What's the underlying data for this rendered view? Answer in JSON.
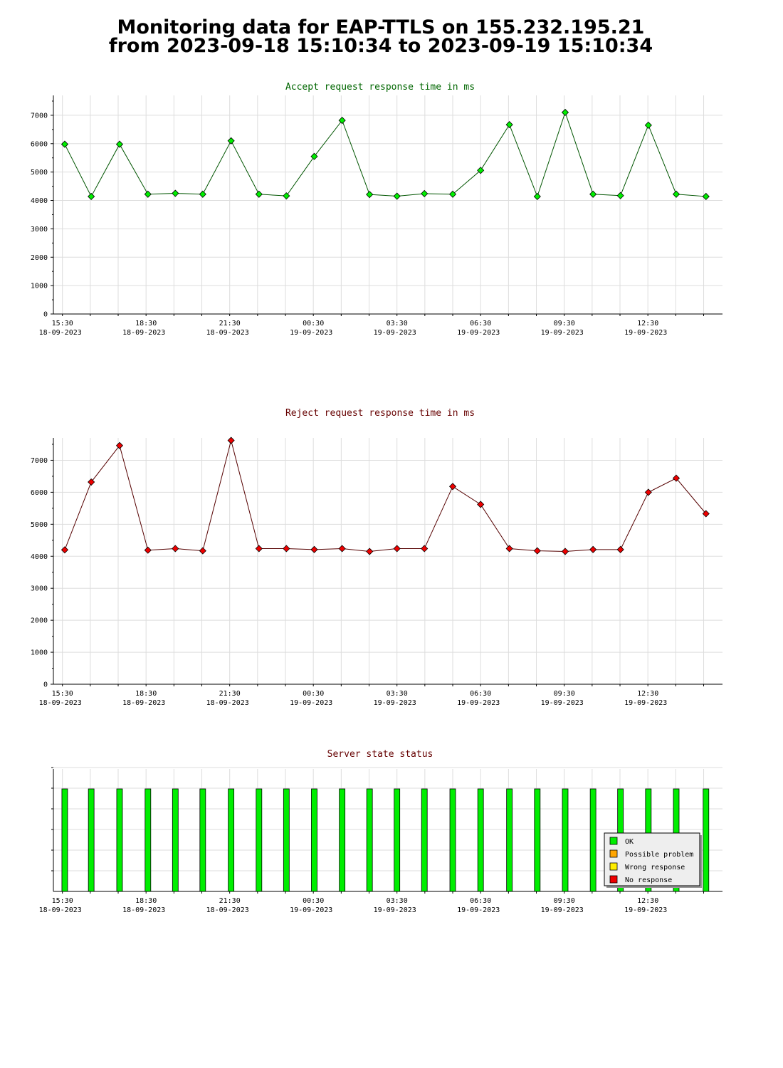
{
  "page": {
    "title_line1": "Monitoring data for EAP-TTLS on 155.232.195.21",
    "title_line2": "from 2023-09-18 15:10:34 to 2023-09-19 15:10:34"
  },
  "colors": {
    "accept_marker": "#00ee00",
    "accept_line": "#005500",
    "accept_title": "#006600",
    "reject_marker": "#ee0000",
    "reject_line": "#550000",
    "reject_title": "#660000",
    "status_title": "#660000",
    "ok": "#00ee00",
    "possible_problem": "#ffa500",
    "wrong_response": "#ffee00",
    "no_response": "#ee0000",
    "grid": "#dddddd"
  },
  "x_ticks": [
    {
      "time": "15:30",
      "date": "18-09-2023"
    },
    {
      "time": "18:30",
      "date": "18-09-2023"
    },
    {
      "time": "21:30",
      "date": "18-09-2023"
    },
    {
      "time": "00:30",
      "date": "19-09-2023"
    },
    {
      "time": "03:30",
      "date": "19-09-2023"
    },
    {
      "time": "06:30",
      "date": "19-09-2023"
    },
    {
      "time": "09:30",
      "date": "19-09-2023"
    },
    {
      "time": "12:30",
      "date": "19-09-2023"
    }
  ],
  "chart_data": [
    {
      "type": "line",
      "title": "Accept request response time in ms",
      "xlim": [
        "2023-09-18 15:10:34",
        "2023-09-19 15:10:34"
      ],
      "ylim": [
        0,
        7700
      ],
      "yticks": [
        0,
        1000,
        2000,
        3000,
        4000,
        5000,
        6000,
        7000
      ],
      "grid": true,
      "series": [
        {
          "x": [
            "2023-09-18 15:35",
            "2023-09-18 16:32",
            "2023-09-18 17:33",
            "2023-09-18 18:34",
            "2023-09-18 19:33",
            "2023-09-18 20:32",
            "2023-09-18 21:33",
            "2023-09-18 22:33",
            "2023-09-18 23:32",
            "2023-09-19 00:32",
            "2023-09-19 01:32",
            "2023-09-19 02:31",
            "2023-09-19 03:30",
            "2023-09-19 04:29",
            "2023-09-19 05:30",
            "2023-09-19 06:30",
            "2023-09-19 07:32",
            "2023-09-19 08:32",
            "2023-09-19 09:32",
            "2023-09-19 10:32",
            "2023-09-19 11:31",
            "2023-09-19 12:31",
            "2023-09-19 13:31",
            "2023-09-19 14:35"
          ],
          "values": [
            5980,
            4140,
            5980,
            4220,
            4250,
            4220,
            6100,
            4220,
            4160,
            5550,
            6820,
            4210,
            4150,
            4240,
            4220,
            5060,
            6670,
            4140,
            7100,
            4220,
            4170,
            6650,
            4220,
            4140
          ]
        }
      ]
    },
    {
      "type": "line",
      "title": "Reject request response time in ms",
      "xlim": [
        "2023-09-18 15:10:34",
        "2023-09-19 15:10:34"
      ],
      "ylim": [
        0,
        7700
      ],
      "yticks": [
        0,
        1000,
        2000,
        3000,
        4000,
        5000,
        6000,
        7000
      ],
      "grid": true,
      "series": [
        {
          "x": [
            "2023-09-18 15:35",
            "2023-09-18 16:32",
            "2023-09-18 17:33",
            "2023-09-18 18:34",
            "2023-09-18 19:33",
            "2023-09-18 20:32",
            "2023-09-18 21:33",
            "2023-09-18 22:33",
            "2023-09-18 23:32",
            "2023-09-19 00:32",
            "2023-09-19 01:32",
            "2023-09-19 02:31",
            "2023-09-19 03:30",
            "2023-09-19 04:29",
            "2023-09-19 05:30",
            "2023-09-19 06:30",
            "2023-09-19 07:32",
            "2023-09-19 08:32",
            "2023-09-19 09:32",
            "2023-09-19 10:32",
            "2023-09-19 11:31",
            "2023-09-19 12:31",
            "2023-09-19 13:31",
            "2023-09-19 14:35"
          ],
          "values": [
            4200,
            6320,
            7460,
            4190,
            4240,
            4170,
            7620,
            4240,
            4240,
            4210,
            4240,
            4150,
            4240,
            4240,
            6180,
            5620,
            4240,
            4170,
            4150,
            4210,
            4210,
            6000,
            6440,
            5330
          ]
        }
      ]
    },
    {
      "type": "bar",
      "title": "Server state status",
      "xlim": [
        "2023-09-18 15:10:34",
        "2023-09-19 15:10:34"
      ],
      "grid": true,
      "legend": {
        "position": "bottom-right",
        "entries": [
          "OK",
          "Possible problem",
          "Wrong response",
          "No response"
        ]
      },
      "x": [
        "2023-09-18 15:35",
        "2023-09-18 16:32",
        "2023-09-18 17:33",
        "2023-09-18 18:34",
        "2023-09-18 19:33",
        "2023-09-18 20:32",
        "2023-09-18 21:33",
        "2023-09-18 22:33",
        "2023-09-18 23:32",
        "2023-09-19 00:32",
        "2023-09-19 01:32",
        "2023-09-19 02:31",
        "2023-09-19 03:30",
        "2023-09-19 04:29",
        "2023-09-19 05:30",
        "2023-09-19 06:30",
        "2023-09-19 07:32",
        "2023-09-19 08:32",
        "2023-09-19 09:32",
        "2023-09-19 10:32",
        "2023-09-19 11:31",
        "2023-09-19 12:31",
        "2023-09-19 13:31",
        "2023-09-19 14:35"
      ],
      "states": [
        "OK",
        "OK",
        "OK",
        "OK",
        "OK",
        "OK",
        "OK",
        "OK",
        "OK",
        "OK",
        "OK",
        "OK",
        "OK",
        "OK",
        "OK",
        "OK",
        "OK",
        "OK",
        "OK",
        "OK",
        "OK",
        "OK",
        "OK",
        "OK"
      ]
    }
  ]
}
